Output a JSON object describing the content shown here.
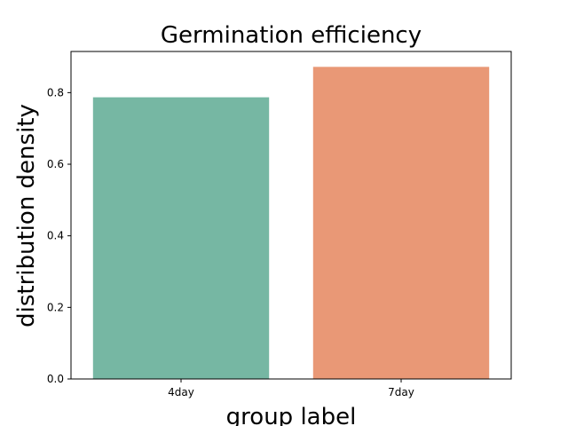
{
  "chart_data": {
    "type": "bar",
    "title": "Germination efficiency",
    "xlabel": "group label",
    "ylabel": "distribution density",
    "categories": [
      "4day",
      "7day"
    ],
    "values": [
      0.787,
      0.872
    ],
    "colors": [
      "#76b7a3",
      "#e99876"
    ],
    "ylim": [
      0,
      0.915
    ],
    "yticks": [
      0.0,
      0.2,
      0.4,
      0.6,
      0.8
    ],
    "ytick_labels": [
      "0.0",
      "0.2",
      "0.4",
      "0.6",
      "0.8"
    ],
    "grid": false,
    "legend": "none"
  }
}
